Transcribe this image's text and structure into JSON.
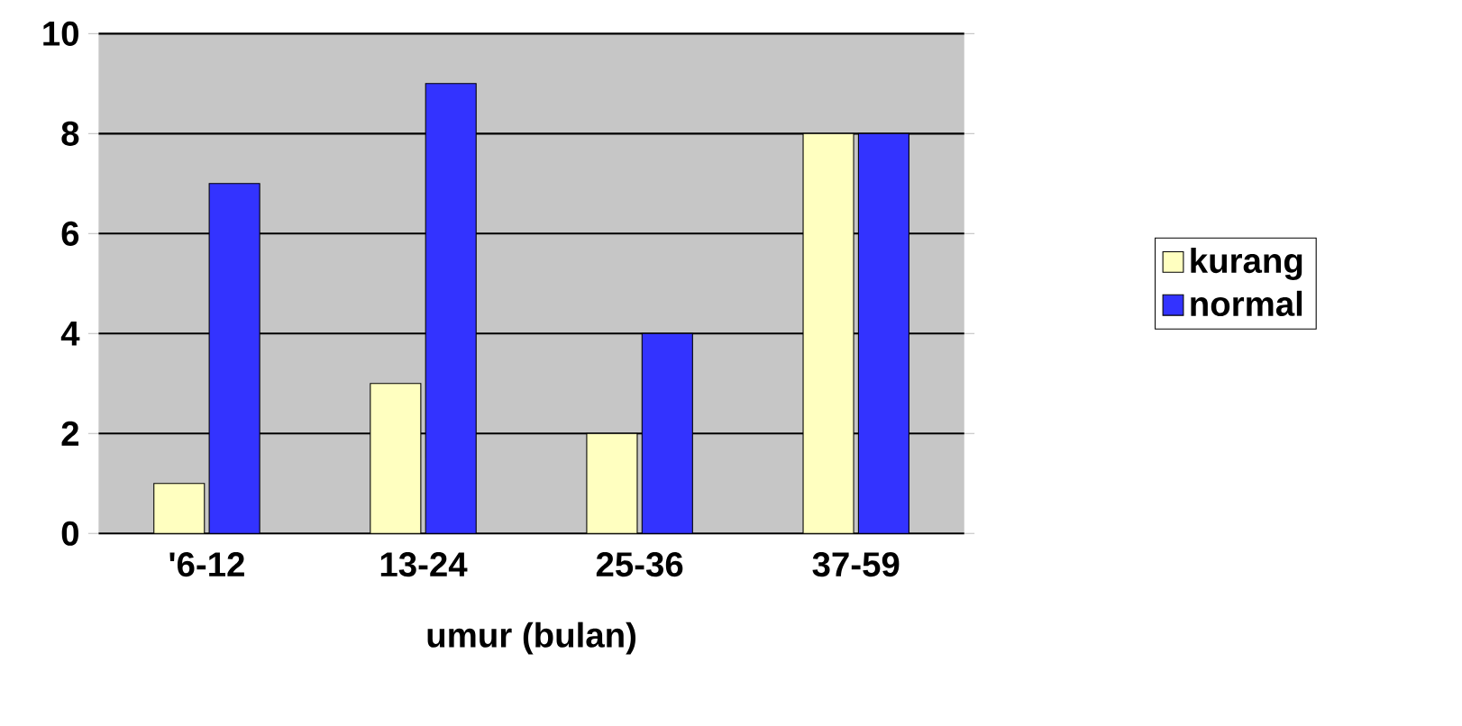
{
  "chart_data": {
    "type": "bar",
    "xlabel": "umur (bulan)",
    "categories": [
      "'6-12",
      "13-24",
      "25-36",
      "37-59"
    ],
    "series": [
      {
        "name": "kurang",
        "color": "#ffffc0",
        "values": [
          1,
          3,
          2,
          8
        ]
      },
      {
        "name": "normal",
        "color": "#3333ff",
        "values": [
          7,
          9,
          4,
          8
        ]
      }
    ],
    "ylim": [
      0,
      10
    ],
    "yticks": [
      0,
      2,
      4,
      6,
      8,
      10
    ],
    "grid": "y",
    "legend": "right"
  }
}
